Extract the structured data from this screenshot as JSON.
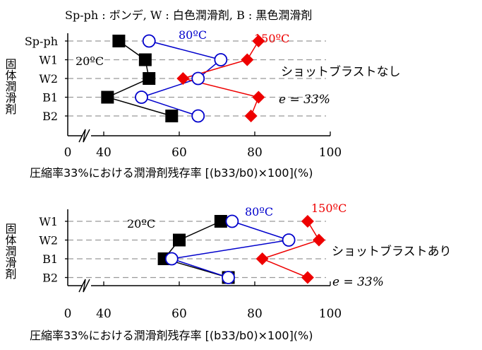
{
  "caption": "Sp-ph : ボンデ, W : 白色潤滑剤, B : 黒色潤滑剤",
  "colors": {
    "c20": "#000000",
    "c80": "#0000cc",
    "c150": "#ee0000",
    "grid": "#999999"
  },
  "chart_data": [
    {
      "type": "scatter",
      "title": "ショットブラストなし",
      "strain_label": "e = 33%",
      "ylabel": "固体潤滑剤",
      "xlabel": "圧縮率33%における潤滑剤残存率 [(b33/b0)×100](%)",
      "xlim": [
        0,
        100
      ],
      "xticks": [
        0,
        40,
        60,
        80,
        100
      ],
      "axis_break": "between 0 and 40",
      "categories": [
        "Sp-ph",
        "W1",
        "W2",
        "B1",
        "B2"
      ],
      "series": [
        {
          "name": "20ºC",
          "marker": "filled-square",
          "color": "#000000",
          "values": [
            44,
            51,
            52,
            41,
            58
          ]
        },
        {
          "name": "80ºC",
          "marker": "open-circle",
          "color": "#0000cc",
          "values": [
            52,
            71,
            65,
            50,
            65
          ]
        },
        {
          "name": "150ºC",
          "marker": "filled-diamond",
          "color": "#ee0000",
          "values": [
            81,
            78,
            61,
            81,
            79
          ]
        }
      ]
    },
    {
      "type": "scatter",
      "title": "ショットブラストあり",
      "strain_label": "e = 33%",
      "ylabel": "固体潤滑剤",
      "xlabel": "圧縮率33%における潤滑剤残存率 [(b33/b0)×100](%)",
      "xlim": [
        0,
        100
      ],
      "xticks": [
        0,
        40,
        60,
        80,
        100
      ],
      "axis_break": "between 0 and 40",
      "categories": [
        "W1",
        "W2",
        "B1",
        "B2"
      ],
      "series": [
        {
          "name": "20ºC",
          "marker": "filled-square",
          "color": "#000000",
          "values": [
            71,
            60,
            56,
            73
          ]
        },
        {
          "name": "80ºC",
          "marker": "open-circle",
          "color": "#0000cc",
          "values": [
            74,
            89,
            58,
            73
          ]
        },
        {
          "name": "150ºC",
          "marker": "filled-diamond",
          "color": "#ee0000",
          "values": [
            94,
            97,
            82,
            94
          ]
        }
      ]
    }
  ]
}
